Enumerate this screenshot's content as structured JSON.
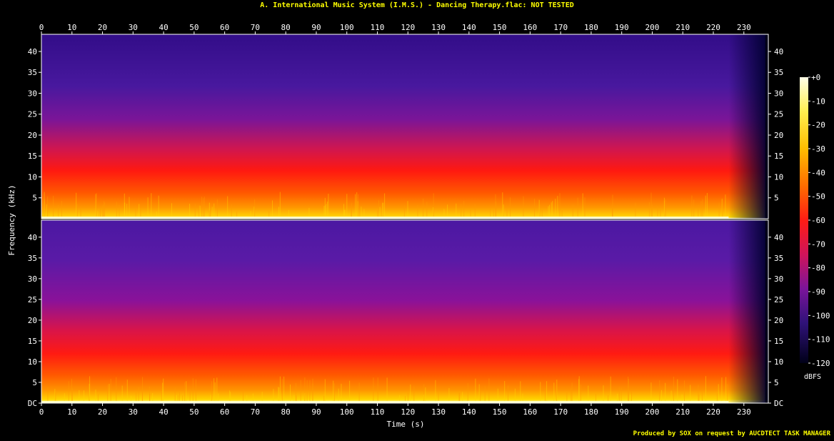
{
  "page": {
    "title": "A. International Music System (I.M.S.) - Dancing Therapy.flac: NOT TESTED",
    "footer": "Produced by SOX on request by AUCDTECT TASK MANAGER"
  },
  "colors": {
    "background": "#000000",
    "title_text": "#ffff00",
    "axis_text": "#ffffff",
    "frame": "#ffffff",
    "spectrum_low": "#000024",
    "spectrum_mid_blue": "#2b1276",
    "spectrum_purple": "#6d1aa8",
    "spectrum_magenta": "#c0166e",
    "spectrum_red": "#ff1a1a",
    "spectrum_orange": "#ff8a00",
    "spectrum_yellow": "#ffd400",
    "spectrum_white": "#ffffe8"
  },
  "chart_data": {
    "type": "heatmap",
    "subtype": "spectrogram",
    "channels": 2,
    "channel_names": [
      "",
      ""
    ],
    "xlabel": "Time (s)",
    "ylabel": "Frequency (kHz)",
    "colorbar_label": "dBFS",
    "xlim": [
      0,
      238
    ],
    "ylim_khz": [
      0,
      44.1
    ],
    "x_ticks": [
      "0",
      "10",
      "20",
      "30",
      "40",
      "50",
      "60",
      "70",
      "80",
      "90",
      "100",
      "110",
      "120",
      "130",
      "140",
      "150",
      "160",
      "170",
      "180",
      "190",
      "200",
      "210",
      "220",
      "230"
    ],
    "x_tick_values": [
      0,
      10,
      20,
      30,
      40,
      50,
      60,
      70,
      80,
      90,
      100,
      110,
      120,
      130,
      140,
      150,
      160,
      170,
      180,
      190,
      200,
      210,
      220,
      230
    ],
    "y_ticks_top": [
      "5",
      "10",
      "15",
      "20",
      "25",
      "30",
      "35",
      "40"
    ],
    "y_ticks_bottom": [
      "DC",
      "5",
      "10",
      "15",
      "20",
      "25",
      "30",
      "35",
      "40"
    ],
    "y_tick_values_top": [
      5,
      10,
      15,
      20,
      25,
      30,
      35,
      40
    ],
    "y_tick_values_bottom": [
      0,
      5,
      10,
      15,
      20,
      25,
      30,
      35,
      40
    ],
    "colorbar_ticks": [
      "+0",
      "-10",
      "-20",
      "-30",
      "-40",
      "-50",
      "-60",
      "-70",
      "-80",
      "-90",
      "-100",
      "-110",
      "-120"
    ],
    "colorbar_values": [
      0,
      -10,
      -20,
      -30,
      -40,
      -50,
      -60,
      -70,
      -80,
      -90,
      -100,
      -110,
      -120
    ],
    "colorbar_range_dbfs": [
      -120,
      0
    ],
    "audio_end_seconds": 237,
    "fade_start_seconds": 225
  }
}
